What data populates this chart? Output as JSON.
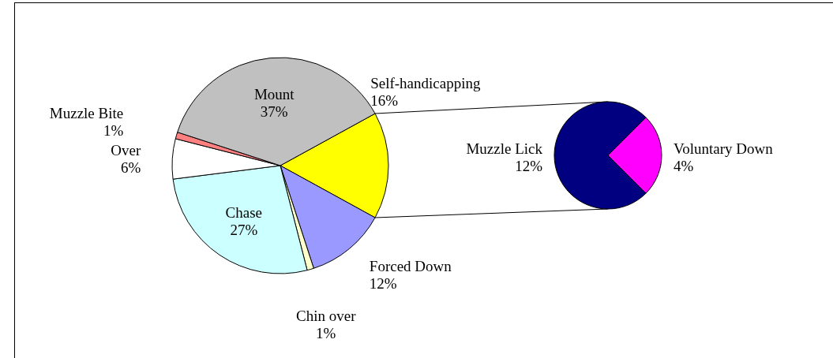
{
  "chart_data": [
    {
      "type": "pie",
      "categories": [
        "Self-handicapping",
        "Forced Down",
        "Chin over",
        "Chase",
        "Over",
        "Muzzle Bite",
        "Mount"
      ],
      "values": [
        16,
        12,
        1,
        27,
        6,
        1,
        37
      ],
      "colors": [
        "#ffff00",
        "#9999ff",
        "#ffffcc",
        "#ccffff",
        "#ffffff",
        "#ff8080",
        "#c0c0c0"
      ],
      "value_labels": [
        "16%",
        "12%",
        "1%",
        "27%",
        "6%",
        "1%",
        "37%"
      ]
    },
    {
      "type": "pie",
      "categories": [
        "Muzzle Lick",
        "Voluntary Down"
      ],
      "values": [
        12,
        4
      ],
      "colors": [
        "#000080",
        "#ff00ff"
      ],
      "value_labels": [
        "12%",
        "4%"
      ]
    }
  ]
}
